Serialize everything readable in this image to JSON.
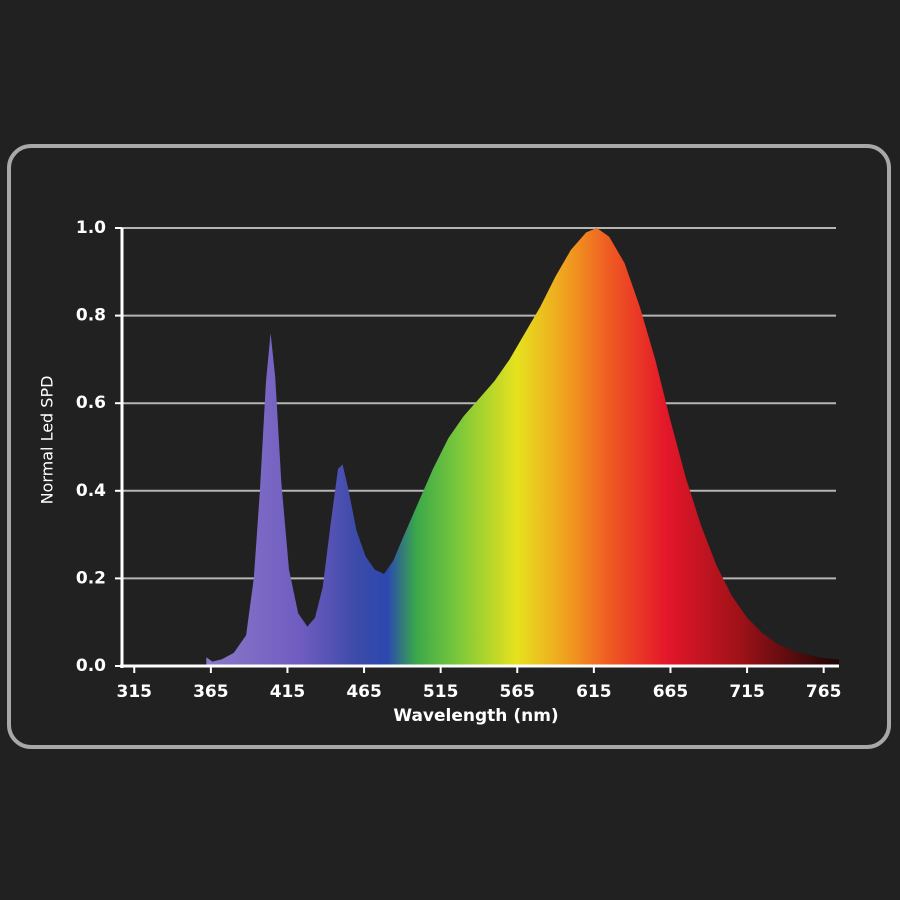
{
  "chart_data": {
    "type": "area",
    "x_label": "Wavelength (nm)",
    "y_label": "Normal Led SPD",
    "x": [
      362,
      366,
      372,
      380,
      388,
      393,
      397,
      401,
      404,
      407,
      411,
      416,
      422,
      428,
      433,
      438,
      443,
      448,
      451,
      455,
      460,
      466,
      472,
      478,
      484,
      490,
      500,
      510,
      520,
      530,
      540,
      550,
      560,
      570,
      580,
      590,
      600,
      610,
      617,
      625,
      635,
      645,
      655,
      665,
      675,
      685,
      695,
      705,
      715,
      725,
      735,
      745,
      755,
      765,
      775
    ],
    "values": [
      0.02,
      0.01,
      0.015,
      0.03,
      0.07,
      0.2,
      0.4,
      0.65,
      0.76,
      0.66,
      0.42,
      0.22,
      0.12,
      0.09,
      0.11,
      0.18,
      0.32,
      0.45,
      0.46,
      0.4,
      0.31,
      0.25,
      0.22,
      0.21,
      0.24,
      0.29,
      0.37,
      0.45,
      0.52,
      0.57,
      0.61,
      0.65,
      0.7,
      0.76,
      0.82,
      0.89,
      0.95,
      0.99,
      1.0,
      0.98,
      0.92,
      0.82,
      0.7,
      0.56,
      0.43,
      0.32,
      0.23,
      0.16,
      0.11,
      0.075,
      0.05,
      0.035,
      0.025,
      0.018,
      0.015
    ],
    "xlim": [
      307,
      775
    ],
    "xticks": [
      315,
      365,
      415,
      465,
      515,
      565,
      615,
      665,
      715,
      765
    ],
    "ylim": [
      0,
      1
    ],
    "yticks": [
      {
        "value": 0,
        "label": "0.0"
      },
      0.2,
      0.4,
      0.6,
      0.8,
      {
        "value": 1,
        "label": "1.0"
      }
    ],
    "grid": true
  }
}
